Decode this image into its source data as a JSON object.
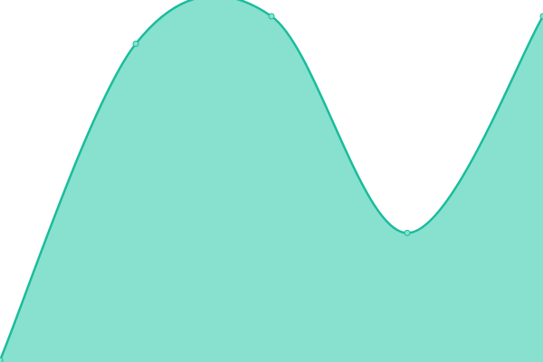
{
  "chart_data": {
    "type": "area",
    "x": [
      0,
      1,
      2,
      3,
      4
    ],
    "series": [
      {
        "values": [
          0,
          92,
          100,
          37,
          100
        ]
      }
    ],
    "ylim": [
      0,
      100
    ],
    "grid": false,
    "smooth": true,
    "colors": {
      "line": "#1abc9c",
      "fill": "#88e0cf",
      "point_fill": "#88e0cf"
    }
  }
}
